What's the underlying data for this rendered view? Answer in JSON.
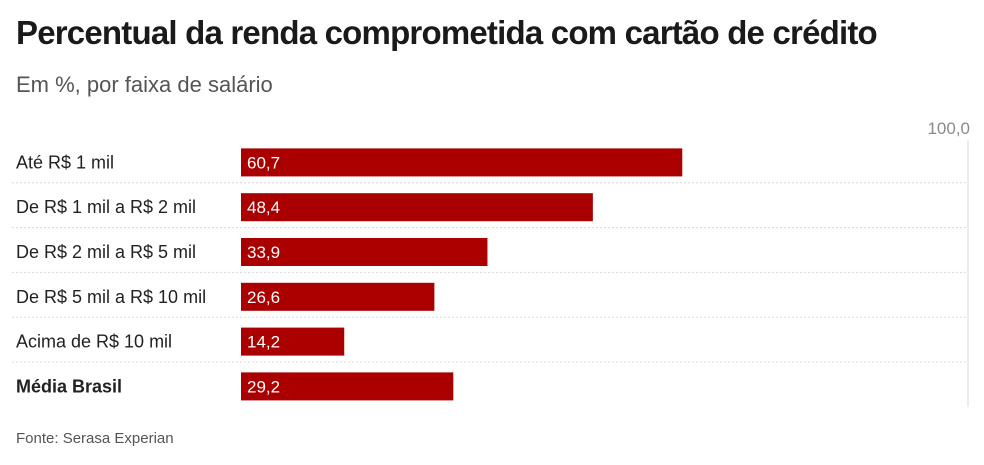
{
  "header": {
    "title": "Percentual da renda comprometida com cartão de crédito",
    "subtitle": "Em %, por faixa de salário"
  },
  "footer": {
    "source": "Fonte: Serasa Experian"
  },
  "chart_data": {
    "type": "bar",
    "orientation": "horizontal",
    "categories": [
      "Até R$ 1 mil",
      "De R$ 1 mil a R$ 2 mil",
      "De R$ 2 mil a R$ 5 mil",
      "De R$ 5 mil a R$ 10 mil",
      "Acima de R$ 10 mil",
      "Média Brasil"
    ],
    "values": [
      60.7,
      48.4,
      33.9,
      26.6,
      14.2,
      29.2
    ],
    "value_labels": [
      "60,7",
      "48,4",
      "33,9",
      "26,6",
      "14,2",
      "29,2"
    ],
    "bold_categories": [
      "Média Brasil"
    ],
    "xlim": [
      0,
      100
    ],
    "max_label": "100,0",
    "bar_color": "#aa0000",
    "grid_color": "#d8d8d8",
    "grid": "dotted row separators"
  }
}
